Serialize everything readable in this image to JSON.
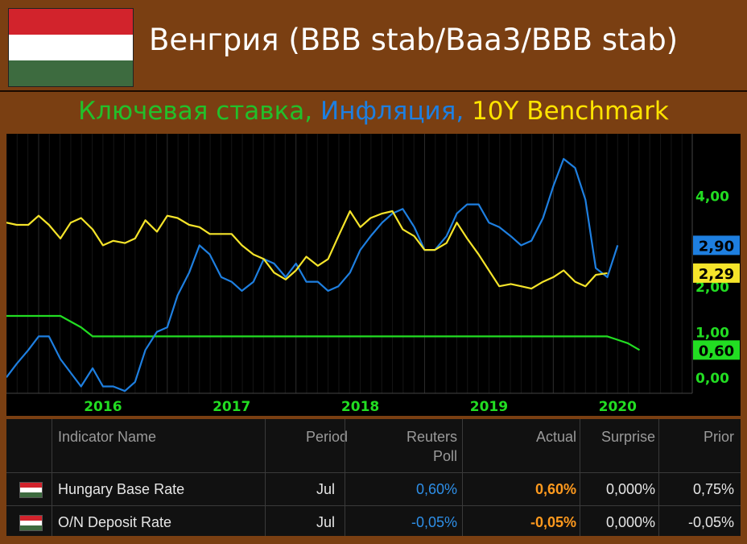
{
  "header": {
    "title": "Венгрия (BBB stab/Baa3/BBB stab)",
    "flag_colors": [
      "#d2232c",
      "#ffffff",
      "#3d6b3f"
    ]
  },
  "subtitle": {
    "part1": "Ключевая ставка,",
    "part2": "Инфляция,",
    "part3": "10Y Benchmark"
  },
  "chart_data": {
    "type": "line",
    "x_tick_labels": [
      "2016",
      "2017",
      "2018",
      "2019",
      "2020"
    ],
    "x_ticks": [
      2016,
      2017,
      2018,
      2019,
      2020
    ],
    "xlim": [
      2015.25,
      2020.58
    ],
    "ylim": [
      -0.35,
      5.35
    ],
    "y_tick_values": [
      0.0,
      1.0,
      2.0,
      4.0
    ],
    "y_tick_labels": [
      "0,00",
      "1,00",
      "2,00",
      "4,00"
    ],
    "grid": true,
    "series": [
      {
        "key": "base_rate",
        "color": "#22dd22",
        "last_label": "0,60",
        "points": [
          [
            2015.25,
            1.35
          ],
          [
            2015.5,
            1.35
          ],
          [
            2015.67,
            1.35
          ],
          [
            2015.83,
            1.1
          ],
          [
            2015.92,
            0.9
          ],
          [
            2016.5,
            0.9
          ],
          [
            2017,
            0.9
          ],
          [
            2018,
            0.9
          ],
          [
            2019,
            0.9
          ],
          [
            2019.67,
            0.9
          ],
          [
            2019.92,
            0.9
          ],
          [
            2020.08,
            0.75
          ],
          [
            2020.17,
            0.6
          ]
        ]
      },
      {
        "key": "inflation",
        "color": "#1e7fe0",
        "last_label": "2,90",
        "points": [
          [
            2015.25,
            0.0
          ],
          [
            2015.33,
            0.3
          ],
          [
            2015.42,
            0.6
          ],
          [
            2015.5,
            0.9
          ],
          [
            2015.58,
            0.9
          ],
          [
            2015.67,
            0.4
          ],
          [
            2015.75,
            0.1
          ],
          [
            2015.83,
            -0.2
          ],
          [
            2015.92,
            0.2
          ],
          [
            2016.0,
            -0.2
          ],
          [
            2016.08,
            -0.2
          ],
          [
            2016.17,
            -0.3
          ],
          [
            2016.25,
            -0.1
          ],
          [
            2016.33,
            0.6
          ],
          [
            2016.42,
            1.0
          ],
          [
            2016.5,
            1.1
          ],
          [
            2016.58,
            1.8
          ],
          [
            2016.67,
            2.3
          ],
          [
            2016.75,
            2.9
          ],
          [
            2016.83,
            2.7
          ],
          [
            2016.92,
            2.2
          ],
          [
            2017.0,
            2.1
          ],
          [
            2017.08,
            1.9
          ],
          [
            2017.17,
            2.1
          ],
          [
            2017.25,
            2.6
          ],
          [
            2017.33,
            2.5
          ],
          [
            2017.42,
            2.2
          ],
          [
            2017.5,
            2.5
          ],
          [
            2017.58,
            2.1
          ],
          [
            2017.67,
            2.1
          ],
          [
            2017.75,
            1.9
          ],
          [
            2017.83,
            2.0
          ],
          [
            2017.92,
            2.3
          ],
          [
            2018.0,
            2.8
          ],
          [
            2018.08,
            3.1
          ],
          [
            2018.17,
            3.4
          ],
          [
            2018.25,
            3.6
          ],
          [
            2018.33,
            3.7
          ],
          [
            2018.42,
            3.3
          ],
          [
            2018.5,
            2.8
          ],
          [
            2018.58,
            2.8
          ],
          [
            2018.67,
            3.1
          ],
          [
            2018.75,
            3.6
          ],
          [
            2018.83,
            3.8
          ],
          [
            2018.92,
            3.8
          ],
          [
            2019.0,
            3.4
          ],
          [
            2019.08,
            3.3
          ],
          [
            2019.17,
            3.1
          ],
          [
            2019.25,
            2.9
          ],
          [
            2019.33,
            3.0
          ],
          [
            2019.42,
            3.5
          ],
          [
            2019.5,
            4.2
          ],
          [
            2019.58,
            4.8
          ],
          [
            2019.67,
            4.6
          ],
          [
            2019.75,
            3.9
          ],
          [
            2019.83,
            2.4
          ],
          [
            2019.92,
            2.2
          ],
          [
            2020.0,
            2.9
          ]
        ]
      },
      {
        "key": "bond_10y",
        "color": "#f5e42a",
        "last_label": "2,29",
        "points": [
          [
            2015.25,
            3.4
          ],
          [
            2015.33,
            3.35
          ],
          [
            2015.42,
            3.35
          ],
          [
            2015.5,
            3.55
          ],
          [
            2015.58,
            3.35
          ],
          [
            2015.67,
            3.05
          ],
          [
            2015.75,
            3.4
          ],
          [
            2015.83,
            3.5
          ],
          [
            2015.92,
            3.25
          ],
          [
            2016.0,
            2.9
          ],
          [
            2016.08,
            3.0
          ],
          [
            2016.17,
            2.95
          ],
          [
            2016.25,
            3.05
          ],
          [
            2016.33,
            3.45
          ],
          [
            2016.42,
            3.2
          ],
          [
            2016.5,
            3.55
          ],
          [
            2016.58,
            3.5
          ],
          [
            2016.67,
            3.35
          ],
          [
            2016.75,
            3.3
          ],
          [
            2016.83,
            3.15
          ],
          [
            2016.92,
            3.15
          ],
          [
            2017.0,
            3.15
          ],
          [
            2017.08,
            2.9
          ],
          [
            2017.17,
            2.7
          ],
          [
            2017.25,
            2.6
          ],
          [
            2017.33,
            2.3
          ],
          [
            2017.42,
            2.15
          ],
          [
            2017.5,
            2.35
          ],
          [
            2017.58,
            2.65
          ],
          [
            2017.67,
            2.45
          ],
          [
            2017.75,
            2.6
          ],
          [
            2017.83,
            3.1
          ],
          [
            2017.92,
            3.65
          ],
          [
            2018.0,
            3.3
          ],
          [
            2018.08,
            3.5
          ],
          [
            2018.17,
            3.6
          ],
          [
            2018.25,
            3.65
          ],
          [
            2018.33,
            3.25
          ],
          [
            2018.42,
            3.1
          ],
          [
            2018.5,
            2.8
          ],
          [
            2018.58,
            2.8
          ],
          [
            2018.67,
            2.95
          ],
          [
            2018.75,
            3.4
          ],
          [
            2018.83,
            3.05
          ],
          [
            2018.92,
            2.7
          ],
          [
            2019.0,
            2.35
          ],
          [
            2019.08,
            2.0
          ],
          [
            2019.17,
            2.05
          ],
          [
            2019.25,
            2.0
          ],
          [
            2019.33,
            1.95
          ],
          [
            2019.42,
            2.1
          ],
          [
            2019.5,
            2.2
          ],
          [
            2019.58,
            2.35
          ],
          [
            2019.67,
            2.1
          ],
          [
            2019.75,
            2.0
          ],
          [
            2019.83,
            2.25
          ],
          [
            2019.92,
            2.29
          ]
        ]
      }
    ]
  },
  "table": {
    "headers": {
      "name": "Indicator Name",
      "period": "Period",
      "poll": "Reuters Poll",
      "actual": "Actual",
      "surprise": "Surprise",
      "prior": "Prior"
    },
    "rows": [
      {
        "name": "Hungary Base Rate",
        "period": "Jul",
        "poll": "0,60%",
        "actual": "0,60%",
        "surprise": "0,000%",
        "prior": "0,75%"
      },
      {
        "name": "O/N Deposit Rate",
        "period": "Jul",
        "poll": "-0,05%",
        "actual": "-0,05%",
        "surprise": "0,000%",
        "prior": "-0,05%"
      }
    ],
    "colors": {
      "poll": "#2e8fe8",
      "actual": "#ff9a1e"
    }
  }
}
